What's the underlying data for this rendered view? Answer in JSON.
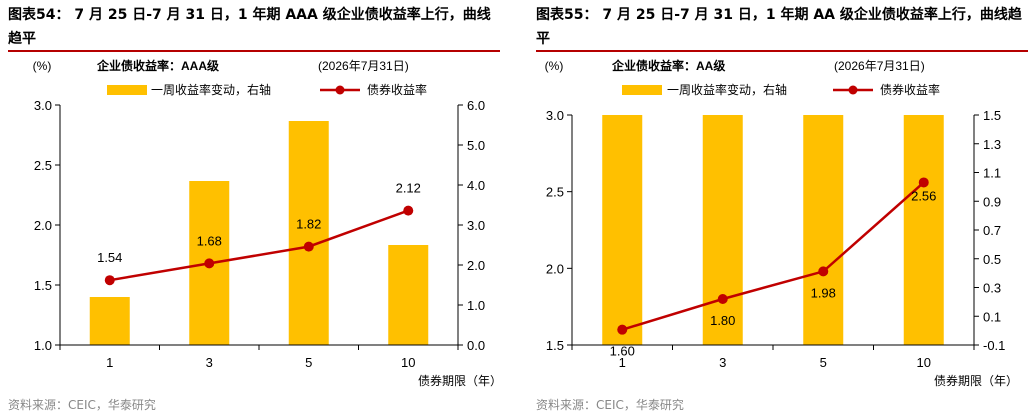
{
  "figures": [
    {
      "title": "图表54： 7 月 25 日-7 月 31 日，1 年期 AAA 级企业债收益率上行，曲线趋平",
      "source": "资料来源：CEIC，华泰研究",
      "colors": {
        "bar": "#FFC000",
        "line": "#C00000"
      },
      "chart_data": {
        "type": "bar+line",
        "chart_title": "企业债收益率：AAA级",
        "date_label": "(2026年7月31日)",
        "left_axis_unit": "(%)",
        "xlabel": "债券期限（年）",
        "categories": [
          "1",
          "3",
          "5",
          "10"
        ],
        "ylim_left": [
          1.0,
          3.0
        ],
        "yticks_left": [
          "1.0",
          "1.5",
          "2.0",
          "2.5",
          "3.0"
        ],
        "ylim_right": [
          0.0,
          6.0
        ],
        "yticks_right": [
          "0.0",
          "1.0",
          "2.0",
          "3.0",
          "4.0",
          "5.0",
          "6.0"
        ],
        "series": [
          {
            "name": "一周收益率变动，右轴",
            "type": "bar",
            "axis": "right",
            "values": [
              1.2,
              4.1,
              5.6,
              2.5
            ]
          },
          {
            "name": "债券收益率",
            "type": "line",
            "axis": "left",
            "values": [
              1.54,
              1.68,
              1.82,
              2.12
            ],
            "labels": [
              "1.54",
              "1.68",
              "1.82",
              "2.12"
            ]
          }
        ]
      }
    },
    {
      "title": "图表55： 7 月 25 日-7 月 31 日，1 年期 AA 级企业债收益率上行，曲线趋平",
      "source": "资料来源：CEIC，华泰研究",
      "colors": {
        "bar": "#FFC000",
        "line": "#C00000"
      },
      "chart_data": {
        "type": "bar+line",
        "chart_title": "企业债收益率：AA级",
        "date_label": "(2026年7月31日)",
        "left_axis_unit": "(%)",
        "xlabel": "债券期限（年）",
        "categories": [
          "1",
          "3",
          "5",
          "10"
        ],
        "ylim_left": [
          1.5,
          3.0
        ],
        "yticks_left": [
          "1.5",
          "2.0",
          "2.5",
          "3.0"
        ],
        "ylim_right": [
          -0.1,
          1.5
        ],
        "yticks_right": [
          "-0.1",
          "0.1",
          "0.3",
          "0.5",
          "0.7",
          "0.9",
          "1.1",
          "1.3",
          "1.5"
        ],
        "series": [
          {
            "name": "一周收益率变动，右轴",
            "type": "bar",
            "axis": "right",
            "values": [
              1.5,
              1.5,
              1.5,
              1.5
            ]
          },
          {
            "name": "债券收益率",
            "type": "line",
            "axis": "left",
            "values": [
              1.6,
              1.8,
              1.98,
              2.56
            ],
            "labels": [
              "1.60",
              "1.80",
              "1.98",
              "2.56"
            ]
          }
        ]
      }
    }
  ]
}
